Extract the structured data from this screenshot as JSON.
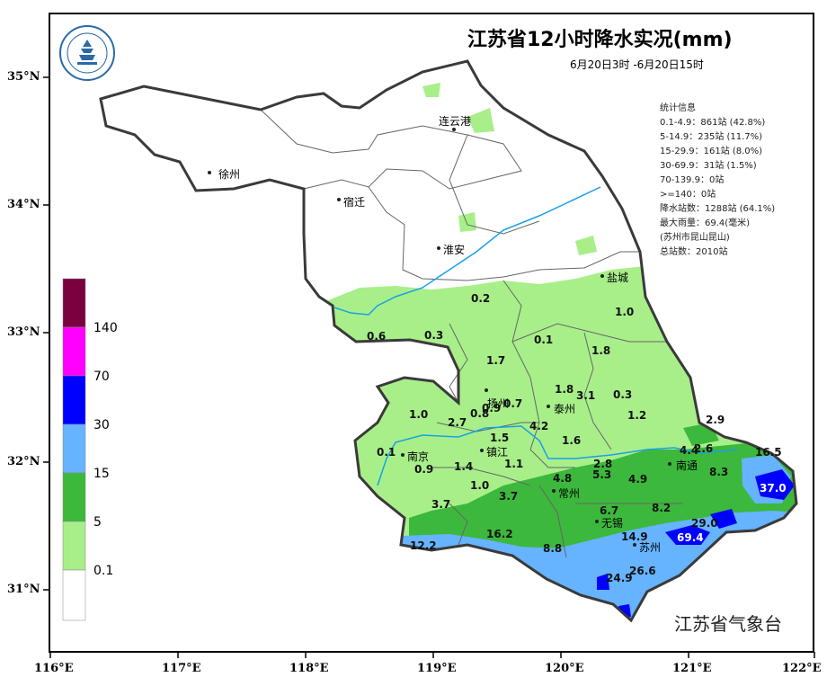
{
  "title": "江苏省12小时降水实况(mm)",
  "subtitle": "6月20日3时 -6月20日15时",
  "agency": "江苏省气象台",
  "stats": [
    "统计信息",
    "0.1-4.9：861站 (42.8%)",
    "5-14.9：235站 (11.7%)",
    "15-29.9：161站 (8.0%)",
    "30-69.9：31站 (1.5%)",
    "70-139.9：0站",
    ">=140：0站",
    "降水站数：1288站 (64.1%)",
    "最大雨量：69.4(毫米)",
    "(苏州市昆山昆山)",
    "总站数：2010站"
  ],
  "lat_labels": [
    "35°N",
    "34°N",
    "33°N",
    "32°N",
    "31°N"
  ],
  "lon_labels": [
    "116°E",
    "117°E",
    "118°E",
    "119°E",
    "120°E",
    "121°E",
    "122°E"
  ],
  "legend": {
    "labels": [
      "140",
      "70",
      "30",
      "15",
      "5",
      "0.1"
    ],
    "colors": [
      "#7a0040",
      "#ff00ff",
      "#0000ff",
      "#66b3ff",
      "#3cb83c",
      "#a8ef8a",
      "#ffffff"
    ]
  },
  "cities": [
    "徐州",
    "连云港",
    "宿迁",
    "淮安",
    "盐城",
    "扬州",
    "泰州",
    "南京",
    "镇江",
    "南通",
    "常州",
    "无锡",
    "苏州"
  ],
  "values": [
    "0.6",
    "0.3",
    "0.2",
    "1.0",
    "0.1",
    "1.7",
    "1.8",
    "0.3",
    "3.1",
    "1.8",
    "1.0",
    "2.7",
    "0.9",
    "0.7",
    "0.8",
    "4.2",
    "1.2",
    "2.9",
    "0.1",
    "0.9",
    "1.5",
    "1.4",
    "1.1",
    "1.6",
    "4.4",
    "2.6",
    "16.5",
    "2.8",
    "5.3",
    "4.8",
    "4.9",
    "8.3",
    "37.0",
    "1.0",
    "3.7",
    "3.7",
    "6.7",
    "8.2",
    "29.0",
    "12.2",
    "16.2",
    "8.8",
    "14.9",
    "69.4",
    "24.9",
    "26.6"
  ]
}
